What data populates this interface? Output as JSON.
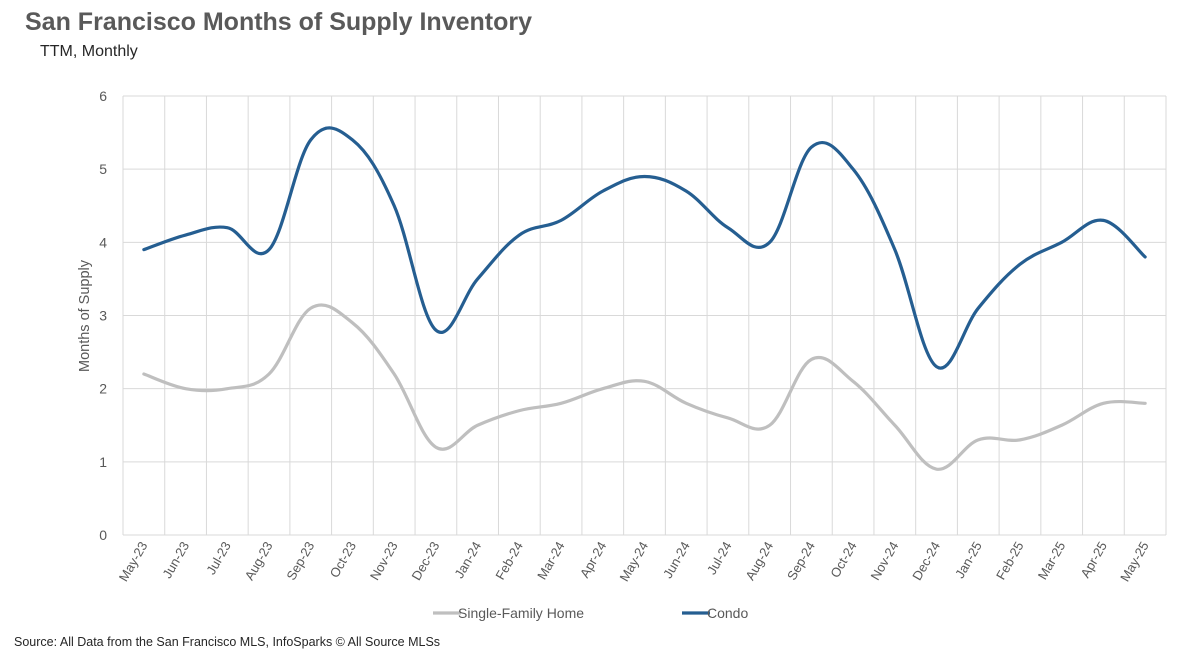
{
  "chart_data": {
    "type": "line",
    "title": "San Francisco Months of Supply Inventory",
    "subtitle": "TTM, Monthly",
    "ylabel": "Months of Supply",
    "xlabel": "",
    "ylim": [
      0,
      6
    ],
    "yticks": [
      "0",
      "1",
      "2",
      "3",
      "4",
      "5",
      "6"
    ],
    "grid": true,
    "legend_position": "bottom",
    "categories": [
      "May-23",
      "Jun-23",
      "Jul-23",
      "Aug-23",
      "Sep-23",
      "Oct-23",
      "Nov-23",
      "Dec-23",
      "Jan-24",
      "Feb-24",
      "Mar-24",
      "Apr-24",
      "May-24",
      "Jun-24",
      "Jul-24",
      "Aug-24",
      "Sep-24",
      "Oct-24",
      "Nov-24",
      "Dec-24",
      "Jan-25",
      "Feb-25",
      "Mar-25",
      "Apr-25",
      "May-25"
    ],
    "series": [
      {
        "name": "Single-Family Home",
        "color": "#bfbfbf",
        "values": [
          2.2,
          2.0,
          2.0,
          2.2,
          3.1,
          2.9,
          2.2,
          1.2,
          1.5,
          1.7,
          1.8,
          2.0,
          2.1,
          1.8,
          1.6,
          1.5,
          2.4,
          2.1,
          1.5,
          0.9,
          1.3,
          1.3,
          1.5,
          1.8,
          1.8
        ]
      },
      {
        "name": "Condo",
        "color": "#255e91",
        "values": [
          3.9,
          4.1,
          4.2,
          3.9,
          5.4,
          5.4,
          4.5,
          2.8,
          3.5,
          4.1,
          4.3,
          4.7,
          4.9,
          4.7,
          4.2,
          4.0,
          5.3,
          5.0,
          3.9,
          2.3,
          3.1,
          3.7,
          4.0,
          4.3,
          3.8
        ]
      }
    ]
  },
  "source": "Source: All Data from the San Francisco MLS, InfoSparks © All Source MLSs"
}
